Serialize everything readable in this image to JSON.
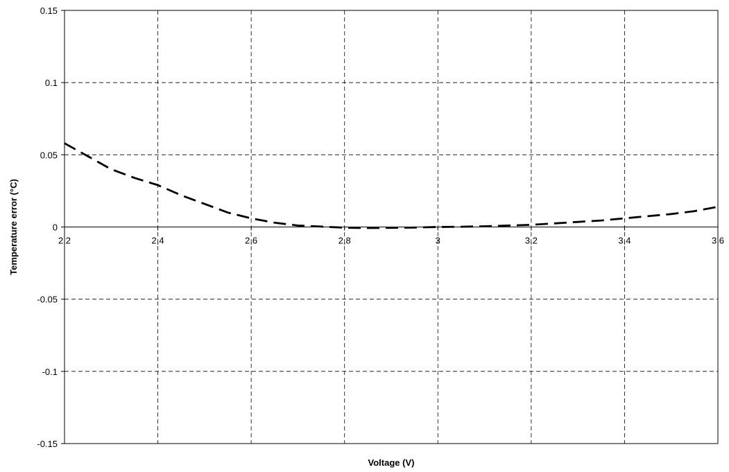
{
  "chart_data": {
    "type": "line",
    "title": "",
    "xlabel": "Voltage (V)",
    "ylabel": "Temperature error (°C)",
    "xlim": [
      2.2,
      3.6
    ],
    "ylim": [
      -0.15,
      0.15
    ],
    "grid": true,
    "legend": "none",
    "x_ticks": [
      2.2,
      2.4,
      2.6,
      2.8,
      3.0,
      3.2,
      3.4,
      3.6
    ],
    "x_tick_labels": [
      "2,2",
      "2,4",
      "2,6",
      "2,8",
      "3",
      "3,2",
      "3,4",
      "3,6"
    ],
    "y_ticks": [
      -0.15,
      -0.1,
      -0.05,
      0,
      0.05,
      0.1,
      0.15
    ],
    "y_tick_labels": [
      "-0.15",
      "-0.1",
      "-0.05",
      "0",
      "0.05",
      "0.1",
      "0.15"
    ],
    "series": [
      {
        "line_style": "dashed",
        "color": "#000000",
        "x": [
          2.2,
          2.25,
          2.3,
          2.35,
          2.4,
          2.45,
          2.5,
          2.55,
          2.6,
          2.65,
          2.7,
          2.75,
          2.8,
          2.85,
          2.9,
          2.95,
          3.0,
          3.05,
          3.1,
          3.15,
          3.2,
          3.25,
          3.3,
          3.35,
          3.4,
          3.45,
          3.5,
          3.55,
          3.6
        ],
        "y": [
          0.058,
          0.049,
          0.04,
          0.034,
          0.029,
          0.022,
          0.016,
          0.01,
          0.006,
          0.003,
          0.001,
          0.0003,
          -0.0005,
          -0.0007,
          -0.0006,
          -0.0004,
          0.0,
          0.0002,
          0.0005,
          0.001,
          0.0015,
          0.0025,
          0.0035,
          0.0045,
          0.006,
          0.0075,
          0.009,
          0.011,
          0.014
        ]
      }
    ]
  }
}
